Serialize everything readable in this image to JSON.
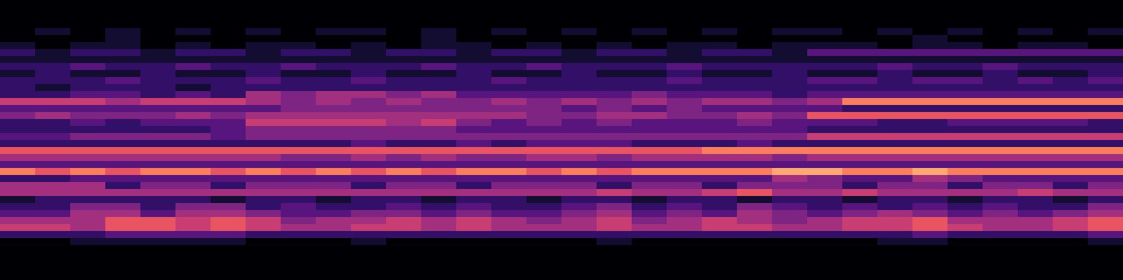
{
  "chart_data": {
    "type": "heatmap",
    "color": "magma",
    "tick_labels": false,
    "zlim": [
      0,
      11
    ],
    "values": [
      [
        0,
        0,
        0,
        0,
        0,
        0,
        0,
        0,
        0,
        0,
        0,
        0,
        0,
        0,
        0,
        0,
        0,
        0,
        0,
        0,
        0,
        0,
        0,
        0,
        0,
        0,
        0,
        0,
        0,
        0,
        0,
        0
      ],
      [
        0,
        0,
        0,
        0,
        0,
        0,
        0,
        0,
        0,
        0,
        0,
        0,
        0,
        0,
        0,
        0,
        0,
        0,
        0,
        0,
        0,
        0,
        0,
        0,
        0,
        0,
        0,
        0,
        0,
        0,
        0,
        0
      ],
      [
        0,
        0,
        0,
        0,
        0,
        0,
        0,
        0,
        0,
        0,
        0,
        0,
        0,
        0,
        0,
        0,
        0,
        0,
        0,
        0,
        0,
        0,
        0,
        0,
        0,
        0,
        0,
        0,
        0,
        0,
        0,
        0
      ],
      [
        0,
        0,
        0,
        0,
        0,
        0,
        0,
        0,
        0,
        0,
        0,
        0,
        0,
        0,
        0,
        0,
        0,
        0,
        0,
        0,
        0,
        0,
        0,
        0,
        0,
        0,
        0,
        0,
        0,
        0,
        0,
        0
      ],
      [
        0,
        1,
        0,
        1,
        0,
        1,
        0,
        1,
        0,
        1,
        1,
        0,
        1,
        0,
        1,
        0,
        1,
        0,
        1,
        0,
        1,
        0,
        1,
        1,
        0,
        1,
        0,
        1,
        0,
        1,
        0,
        1
      ],
      [
        0,
        0,
        0,
        1,
        0,
        0,
        0,
        0,
        0,
        0,
        0,
        0,
        1,
        0,
        0,
        0,
        0,
        0,
        0,
        0,
        0,
        0,
        0,
        0,
        0,
        0,
        1,
        0,
        0,
        0,
        0,
        0
      ],
      [
        1,
        0,
        1,
        1,
        0,
        1,
        0,
        1,
        1,
        0,
        1,
        0,
        1,
        1,
        0,
        1,
        0,
        1,
        0,
        1,
        1,
        0,
        1,
        1,
        1,
        0,
        1,
        1,
        0,
        1,
        1,
        0
      ],
      [
        2,
        1,
        2,
        2,
        1,
        2,
        2,
        1,
        2,
        2,
        1,
        2,
        2,
        1,
        2,
        2,
        1,
        2,
        2,
        1,
        2,
        2,
        1,
        3,
        3,
        3,
        3,
        3,
        3,
        3,
        3,
        3
      ],
      [
        1,
        1,
        1,
        1,
        1,
        1,
        1,
        1,
        1,
        1,
        1,
        1,
        1,
        1,
        1,
        1,
        1,
        1,
        1,
        1,
        1,
        1,
        1,
        1,
        1,
        1,
        1,
        1,
        1,
        1,
        1,
        1
      ],
      [
        2,
        2,
        3,
        2,
        2,
        3,
        2,
        2,
        3,
        2,
        2,
        2,
        3,
        2,
        2,
        3,
        2,
        2,
        2,
        3,
        2,
        2,
        2,
        2,
        2,
        3,
        2,
        2,
        3,
        2,
        2,
        2
      ],
      [
        1,
        2,
        1,
        1,
        2,
        1,
        1,
        2,
        1,
        1,
        2,
        1,
        1,
        2,
        1,
        1,
        2,
        1,
        1,
        2,
        1,
        1,
        2,
        1,
        1,
        2,
        1,
        1,
        2,
        1,
        1,
        2
      ],
      [
        2,
        2,
        2,
        3,
        2,
        2,
        2,
        3,
        2,
        2,
        3,
        2,
        2,
        2,
        3,
        2,
        2,
        2,
        2,
        3,
        2,
        2,
        2,
        3,
        3,
        2,
        3,
        3,
        2,
        3,
        2,
        3
      ],
      [
        2,
        1,
        2,
        2,
        2,
        1,
        2,
        2,
        2,
        2,
        2,
        2,
        2,
        2,
        2,
        2,
        2,
        2,
        2,
        2,
        2,
        2,
        2,
        2,
        2,
        2,
        2,
        2,
        2,
        2,
        2,
        2
      ],
      [
        2,
        2,
        3,
        3,
        2,
        3,
        2,
        5,
        4,
        5,
        5,
        4,
        5,
        3,
        3,
        3,
        3,
        3,
        4,
        3,
        3,
        3,
        2,
        3,
        3,
        3,
        3,
        3,
        3,
        3,
        3,
        3
      ],
      [
        6,
        6,
        6,
        5,
        6,
        6,
        6,
        5,
        4,
        5,
        4,
        5,
        4,
        4,
        5,
        4,
        5,
        4,
        5,
        4,
        5,
        5,
        4,
        5,
        8,
        8,
        8,
        8,
        8,
        8,
        8,
        8
      ],
      [
        3,
        3,
        3,
        3,
        3,
        3,
        3,
        3,
        4,
        4,
        4,
        4,
        4,
        4,
        4,
        4,
        3,
        4,
        3,
        4,
        3,
        3,
        3,
        3,
        2,
        2,
        2,
        2,
        2,
        2,
        2,
        2
      ],
      [
        4,
        5,
        4,
        4,
        4,
        5,
        4,
        5,
        5,
        5,
        5,
        5,
        5,
        5,
        5,
        4,
        4,
        5,
        5,
        4,
        4,
        5,
        4,
        7,
        7,
        7,
        7,
        7,
        7,
        7,
        7,
        7
      ],
      [
        2,
        2,
        3,
        2,
        3,
        3,
        3,
        6,
        6,
        6,
        6,
        5,
        6,
        4,
        3,
        4,
        3,
        4,
        3,
        3,
        3,
        4,
        3,
        3,
        3,
        2,
        2,
        3,
        3,
        3,
        3,
        2
      ],
      [
        2,
        2,
        2,
        2,
        2,
        2,
        3,
        4,
        4,
        4,
        4,
        4,
        4,
        3,
        3,
        3,
        3,
        3,
        3,
        3,
        3,
        3,
        3,
        2,
        2,
        2,
        2,
        2,
        2,
        2,
        2,
        2
      ],
      [
        3,
        3,
        4,
        4,
        4,
        4,
        3,
        4,
        4,
        4,
        4,
        4,
        4,
        4,
        4,
        4,
        4,
        4,
        4,
        4,
        4,
        4,
        4,
        6,
        6,
        6,
        6,
        6,
        6,
        6,
        6,
        6
      ],
      [
        2,
        2,
        2,
        2,
        2,
        2,
        2,
        2,
        2,
        2,
        3,
        2,
        2,
        3,
        2,
        3,
        3,
        3,
        2,
        2,
        2,
        3,
        2,
        2,
        2,
        2,
        2,
        2,
        2,
        2,
        2,
        2
      ],
      [
        7,
        7,
        7,
        7,
        7,
        7,
        7,
        7,
        7,
        7,
        7,
        7,
        7,
        7,
        7,
        7,
        7,
        7,
        7,
        7,
        8,
        8,
        8,
        8,
        8,
        8,
        8,
        8,
        8,
        8,
        8,
        8
      ],
      [
        5,
        5,
        5,
        5,
        5,
        5,
        5,
        5,
        4,
        4,
        5,
        4,
        5,
        4,
        4,
        5,
        5,
        4,
        5,
        5,
        5,
        5,
        4,
        5,
        5,
        5,
        5,
        5,
        5,
        5,
        5,
        5
      ],
      [
        3,
        3,
        3,
        3,
        3,
        3,
        3,
        3,
        3,
        3,
        3,
        3,
        3,
        3,
        3,
        3,
        3,
        3,
        3,
        3,
        3,
        3,
        3,
        3,
        3,
        3,
        3,
        3,
        3,
        3,
        3,
        3
      ],
      [
        8,
        7,
        8,
        7,
        8,
        8,
        7,
        8,
        7,
        8,
        7,
        8,
        7,
        8,
        8,
        7,
        8,
        7,
        8,
        8,
        8,
        8,
        9,
        9,
        8,
        8,
        9,
        8,
        8,
        8,
        8,
        8
      ],
      [
        2,
        2,
        3,
        3,
        3,
        3,
        3,
        3,
        3,
        3,
        3,
        3,
        3,
        3,
        3,
        3,
        3,
        3,
        3,
        3,
        3,
        3,
        5,
        4,
        3,
        3,
        5,
        4,
        3,
        3,
        3,
        3
      ],
      [
        5,
        5,
        5,
        2,
        4,
        4,
        2,
        4,
        4,
        4,
        2,
        4,
        4,
        2,
        4,
        4,
        4,
        2,
        4,
        4,
        2,
        4,
        4,
        4,
        2,
        4,
        4,
        2,
        4,
        4,
        2,
        4
      ],
      [
        5,
        5,
        5,
        5,
        5,
        5,
        5,
        5,
        5,
        5,
        5,
        5,
        5,
        5,
        5,
        5,
        5,
        6,
        5,
        5,
        6,
        7,
        5,
        5,
        6,
        5,
        5,
        5,
        5,
        6,
        5,
        5
      ],
      [
        1,
        2,
        2,
        2,
        2,
        2,
        1,
        2,
        2,
        1,
        2,
        2,
        1,
        2,
        2,
        1,
        2,
        2,
        1,
        2,
        2,
        1,
        2,
        2,
        1,
        2,
        2,
        1,
        2,
        2,
        1,
        2
      ],
      [
        2,
        2,
        4,
        4,
        2,
        4,
        4,
        2,
        3,
        2,
        2,
        3,
        2,
        3,
        2,
        2,
        3,
        4,
        2,
        3,
        2,
        4,
        3,
        2,
        3,
        2,
        3,
        2,
        3,
        2,
        2,
        4
      ],
      [
        3,
        3,
        5,
        5,
        3,
        5,
        5,
        4,
        3,
        3,
        4,
        4,
        3,
        4,
        3,
        3,
        4,
        5,
        3,
        4,
        3,
        5,
        4,
        3,
        4,
        5,
        4,
        3,
        4,
        3,
        4,
        5
      ],
      [
        5,
        5,
        5,
        7,
        7,
        6,
        7,
        6,
        4,
        5,
        5,
        6,
        5,
        6,
        5,
        4,
        5,
        6,
        4,
        5,
        6,
        5,
        4,
        5,
        6,
        6,
        7,
        5,
        5,
        5,
        6,
        7
      ],
      [
        6,
        6,
        5,
        7,
        7,
        6,
        7,
        6,
        5,
        5,
        6,
        6,
        5,
        6,
        5,
        5,
        5,
        6,
        5,
        5,
        6,
        6,
        5,
        5,
        6,
        6,
        7,
        6,
        5,
        5,
        6,
        7
      ],
      [
        2,
        2,
        2,
        3,
        3,
        3,
        3,
        2,
        2,
        2,
        2,
        2,
        2,
        2,
        2,
        2,
        2,
        2,
        2,
        2,
        2,
        2,
        2,
        2,
        2,
        2,
        3,
        2,
        2,
        2,
        2,
        3
      ],
      [
        0,
        0,
        1,
        1,
        1,
        1,
        1,
        0,
        0,
        0,
        1,
        0,
        0,
        0,
        0,
        0,
        0,
        1,
        0,
        0,
        0,
        0,
        0,
        0,
        0,
        1,
        1,
        0,
        0,
        0,
        0,
        1
      ],
      [
        0,
        0,
        0,
        0,
        0,
        0,
        0,
        0,
        0,
        0,
        0,
        0,
        0,
        0,
        0,
        0,
        0,
        0,
        0,
        0,
        0,
        0,
        0,
        0,
        0,
        0,
        0,
        0,
        0,
        0,
        0,
        0
      ],
      [
        0,
        0,
        0,
        0,
        0,
        0,
        0,
        0,
        0,
        0,
        0,
        0,
        0,
        0,
        0,
        0,
        0,
        0,
        0,
        0,
        0,
        0,
        0,
        0,
        0,
        0,
        0,
        0,
        0,
        0,
        0,
        0
      ],
      [
        0,
        0,
        0,
        0,
        0,
        0,
        0,
        0,
        0,
        0,
        0,
        0,
        0,
        0,
        0,
        0,
        0,
        0,
        0,
        0,
        0,
        0,
        0,
        0,
        0,
        0,
        0,
        0,
        0,
        0,
        0,
        0
      ],
      [
        0,
        0,
        0,
        0,
        0,
        0,
        0,
        0,
        0,
        0,
        0,
        0,
        0,
        0,
        0,
        0,
        0,
        0,
        0,
        0,
        0,
        0,
        0,
        0,
        0,
        0,
        0,
        0,
        0,
        0,
        0,
        0
      ],
      [
        0,
        0,
        0,
        0,
        0,
        0,
        0,
        0,
        0,
        0,
        0,
        0,
        0,
        0,
        0,
        0,
        0,
        0,
        0,
        0,
        0,
        0,
        0,
        0,
        0,
        0,
        0,
        0,
        0,
        0,
        0,
        0
      ]
    ]
  }
}
